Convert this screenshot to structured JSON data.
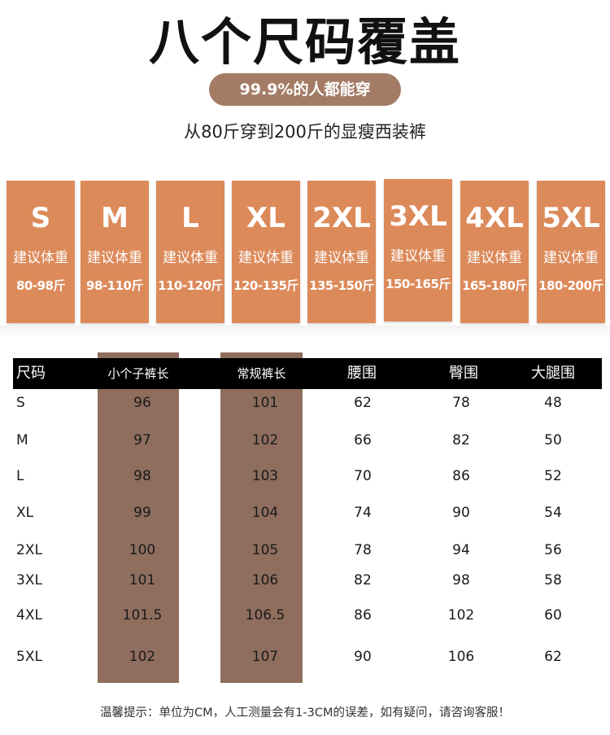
{
  "title": "八个尺码覆盖",
  "badge": "99.9%的人都能穿",
  "subtitle": "从80斤穿到200斤的显瘦西装裤",
  "weight_label": "建议体重",
  "sizes": [
    {
      "size": "S",
      "range": "80-98斤"
    },
    {
      "size": "M",
      "range": "98-110斤"
    },
    {
      "size": "L",
      "range": "110-120斤"
    },
    {
      "size": "XL",
      "range": "120-135斤"
    },
    {
      "size": "2XL",
      "range": "135-150斤"
    },
    {
      "size": "3XL",
      "range": "150-165斤"
    },
    {
      "size": "4XL",
      "range": "165-180斤"
    },
    {
      "size": "5XL",
      "range": "180-200斤"
    }
  ],
  "table": {
    "headers": [
      "尺码",
      "小个子裤长",
      "常规裤长",
      "腰围",
      "臀围",
      "大腿围"
    ],
    "rows": [
      [
        "S",
        "96",
        "101",
        "62",
        "78",
        "48"
      ],
      [
        "M",
        "97",
        "102",
        "66",
        "82",
        "50"
      ],
      [
        "L",
        "98",
        "103",
        "70",
        "86",
        "52"
      ],
      [
        "XL",
        "99",
        "104",
        "74",
        "90",
        "54"
      ],
      [
        "2XL",
        "100",
        "105",
        "78",
        "94",
        "56"
      ],
      [
        "3XL",
        "101",
        "106",
        "82",
        "98",
        "58"
      ],
      [
        "4XL",
        "101.5",
        "106.5",
        "86",
        "102",
        "60"
      ],
      [
        "5XL",
        "102",
        "107",
        "90",
        "106",
        "62"
      ]
    ]
  },
  "footer": "温馨提示：单位为CM，人工测量会有1-3CM的误差，如有疑问，请咨询客服！",
  "colors": {
    "card": "#dc8a5a",
    "pill": "#a47c66",
    "highlight_column": "#8f6e5e",
    "header_bar": "#000000"
  }
}
